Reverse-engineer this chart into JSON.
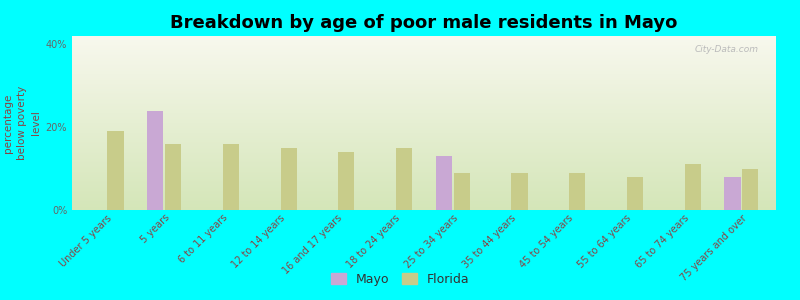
{
  "categories": [
    "Under 5 years",
    "5 years",
    "6 to 11 years",
    "12 to 14 years",
    "16 and 17 years",
    "18 to 24 years",
    "25 to 34 years",
    "35 to 44 years",
    "45 to 54 years",
    "55 to 64 years",
    "65 to 74 years",
    "75 years and over"
  ],
  "mayo_values": [
    0,
    24.0,
    0,
    0,
    0,
    0,
    13.0,
    0,
    0,
    0,
    0,
    8.0
  ],
  "florida_values": [
    19.0,
    16.0,
    16.0,
    15.0,
    14.0,
    15.0,
    9.0,
    9.0,
    9.0,
    8.0,
    11.0,
    10.0
  ],
  "mayo_color": "#c9a8d4",
  "florida_color": "#c8cc8a",
  "title": "Breakdown by age of poor male residents in Mayo",
  "ylabel": "percentage\nbelow poverty\nlevel",
  "ylim": [
    0,
    42
  ],
  "yticks": [
    0,
    20,
    40
  ],
  "ytick_labels": [
    "0%",
    "20%",
    "40%"
  ],
  "bg_color": "#00ffff",
  "title_fontsize": 13,
  "axis_label_fontsize": 7.5,
  "tick_fontsize": 7,
  "legend_mayo": "Mayo",
  "legend_florida": "Florida",
  "watermark": "City-Data.com"
}
